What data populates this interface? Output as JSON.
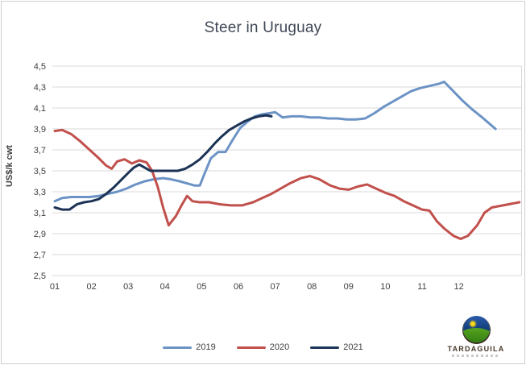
{
  "window": {
    "background": "#ffffff",
    "border_color": "#cfcfcf"
  },
  "chart_data": {
    "type": "line",
    "title": "Steer in Uruguay",
    "xlabel": "",
    "ylabel": "US$/k cwt",
    "ylim": [
      2.5,
      4.5
    ],
    "xlim": [
      1.0,
      13.7
    ],
    "grid": true,
    "grid_color": "#d9d9d9",
    "axis_text_color": "#404040",
    "legend_position": "bottom-center",
    "y_ticks": [
      {
        "value": 4.5,
        "label": "4,5"
      },
      {
        "value": 4.3,
        "label": "4,3"
      },
      {
        "value": 4.1,
        "label": "4,1"
      },
      {
        "value": 3.9,
        "label": "3,9"
      },
      {
        "value": 3.7,
        "label": "3,7"
      },
      {
        "value": 3.5,
        "label": "3,5"
      },
      {
        "value": 3.3,
        "label": "3,3"
      },
      {
        "value": 3.1,
        "label": "3,1"
      },
      {
        "value": 2.9,
        "label": "2,9"
      },
      {
        "value": 2.7,
        "label": "2,7"
      },
      {
        "value": 2.5,
        "label": "2,5"
      }
    ],
    "x_ticks": [
      {
        "value": 1,
        "label": "01"
      },
      {
        "value": 2,
        "label": "02"
      },
      {
        "value": 3,
        "label": "03"
      },
      {
        "value": 4,
        "label": "04"
      },
      {
        "value": 5,
        "label": "05"
      },
      {
        "value": 6,
        "label": "06"
      },
      {
        "value": 7,
        "label": "07"
      },
      {
        "value": 8,
        "label": "08"
      },
      {
        "value": 9,
        "label": "09"
      },
      {
        "value": 10,
        "label": "10"
      },
      {
        "value": 11,
        "label": "11"
      },
      {
        "value": 12,
        "label": "12"
      }
    ],
    "series": [
      {
        "name": "2019",
        "color": "#6c93c5",
        "points": [
          [
            1.0,
            3.21
          ],
          [
            1.2,
            3.24
          ],
          [
            1.45,
            3.25
          ],
          [
            1.7,
            3.25
          ],
          [
            1.95,
            3.25
          ],
          [
            2.2,
            3.26
          ],
          [
            2.45,
            3.28
          ],
          [
            2.7,
            3.3
          ],
          [
            2.95,
            3.33
          ],
          [
            3.2,
            3.37
          ],
          [
            3.45,
            3.4
          ],
          [
            3.7,
            3.42
          ],
          [
            3.95,
            3.43
          ],
          [
            4.15,
            3.42
          ],
          [
            4.4,
            3.4
          ],
          [
            4.6,
            3.38
          ],
          [
            4.8,
            3.36
          ],
          [
            4.95,
            3.36
          ],
          [
            5.05,
            3.45
          ],
          [
            5.25,
            3.62
          ],
          [
            5.45,
            3.68
          ],
          [
            5.65,
            3.68
          ],
          [
            5.85,
            3.8
          ],
          [
            6.05,
            3.91
          ],
          [
            6.25,
            3.97
          ],
          [
            6.45,
            4.02
          ],
          [
            6.65,
            4.04
          ],
          [
            6.85,
            4.05
          ],
          [
            7.0,
            4.06
          ],
          [
            7.2,
            4.01
          ],
          [
            7.45,
            4.02
          ],
          [
            7.7,
            4.02
          ],
          [
            7.95,
            4.01
          ],
          [
            8.2,
            4.01
          ],
          [
            8.45,
            4.0
          ],
          [
            8.7,
            4.0
          ],
          [
            8.95,
            3.99
          ],
          [
            9.2,
            3.99
          ],
          [
            9.45,
            4.0
          ],
          [
            9.7,
            4.05
          ],
          [
            9.95,
            4.11
          ],
          [
            10.2,
            4.16
          ],
          [
            10.45,
            4.21
          ],
          [
            10.7,
            4.26
          ],
          [
            10.95,
            4.29
          ],
          [
            11.2,
            4.31
          ],
          [
            11.45,
            4.33
          ],
          [
            11.6,
            4.35
          ],
          [
            11.85,
            4.26
          ],
          [
            12.1,
            4.17
          ],
          [
            12.35,
            4.09
          ],
          [
            12.6,
            4.02
          ],
          [
            12.8,
            3.96
          ],
          [
            13.0,
            3.9
          ]
        ]
      },
      {
        "name": "2020",
        "color": "#c1504c",
        "points": [
          [
            1.0,
            3.88
          ],
          [
            1.2,
            3.89
          ],
          [
            1.45,
            3.85
          ],
          [
            1.7,
            3.78
          ],
          [
            1.95,
            3.7
          ],
          [
            2.2,
            3.62
          ],
          [
            2.4,
            3.55
          ],
          [
            2.55,
            3.52
          ],
          [
            2.7,
            3.59
          ],
          [
            2.9,
            3.61
          ],
          [
            3.1,
            3.57
          ],
          [
            3.3,
            3.6
          ],
          [
            3.5,
            3.58
          ],
          [
            3.65,
            3.5
          ],
          [
            3.8,
            3.35
          ],
          [
            3.95,
            3.15
          ],
          [
            4.1,
            2.98
          ],
          [
            4.3,
            3.07
          ],
          [
            4.45,
            3.17
          ],
          [
            4.6,
            3.26
          ],
          [
            4.75,
            3.21
          ],
          [
            4.95,
            3.2
          ],
          [
            5.2,
            3.2
          ],
          [
            5.5,
            3.18
          ],
          [
            5.8,
            3.17
          ],
          [
            6.1,
            3.17
          ],
          [
            6.4,
            3.2
          ],
          [
            6.65,
            3.24
          ],
          [
            6.9,
            3.28
          ],
          [
            7.15,
            3.33
          ],
          [
            7.4,
            3.38
          ],
          [
            7.7,
            3.43
          ],
          [
            7.95,
            3.45
          ],
          [
            8.2,
            3.42
          ],
          [
            8.5,
            3.36
          ],
          [
            8.75,
            3.33
          ],
          [
            9.0,
            3.32
          ],
          [
            9.25,
            3.35
          ],
          [
            9.5,
            3.37
          ],
          [
            9.75,
            3.33
          ],
          [
            10.0,
            3.29
          ],
          [
            10.25,
            3.26
          ],
          [
            10.5,
            3.21
          ],
          [
            10.75,
            3.17
          ],
          [
            11.0,
            3.13
          ],
          [
            11.2,
            3.12
          ],
          [
            11.4,
            3.02
          ],
          [
            11.6,
            2.95
          ],
          [
            11.85,
            2.88
          ],
          [
            12.05,
            2.85
          ],
          [
            12.25,
            2.88
          ],
          [
            12.5,
            2.98
          ],
          [
            12.7,
            3.1
          ],
          [
            12.9,
            3.15
          ],
          [
            13.2,
            3.17
          ],
          [
            13.65,
            3.2
          ]
        ]
      },
      {
        "name": "2021",
        "color": "#1c3356",
        "points": [
          [
            1.0,
            3.15
          ],
          [
            1.2,
            3.13
          ],
          [
            1.4,
            3.13
          ],
          [
            1.6,
            3.18
          ],
          [
            1.8,
            3.2
          ],
          [
            2.0,
            3.21
          ],
          [
            2.2,
            3.23
          ],
          [
            2.4,
            3.28
          ],
          [
            2.6,
            3.34
          ],
          [
            2.8,
            3.41
          ],
          [
            3.0,
            3.48
          ],
          [
            3.15,
            3.53
          ],
          [
            3.3,
            3.56
          ],
          [
            3.45,
            3.53
          ],
          [
            3.6,
            3.5
          ],
          [
            3.85,
            3.5
          ],
          [
            4.1,
            3.5
          ],
          [
            4.35,
            3.5
          ],
          [
            4.55,
            3.52
          ],
          [
            4.75,
            3.56
          ],
          [
            4.95,
            3.61
          ],
          [
            5.15,
            3.68
          ],
          [
            5.35,
            3.76
          ],
          [
            5.55,
            3.83
          ],
          [
            5.75,
            3.89
          ],
          [
            5.95,
            3.93
          ],
          [
            6.15,
            3.97
          ],
          [
            6.35,
            4.0
          ],
          [
            6.55,
            4.02
          ],
          [
            6.75,
            4.03
          ],
          [
            6.9,
            4.02
          ]
        ]
      }
    ]
  },
  "logo": {
    "text": "TARDAGUILA"
  }
}
